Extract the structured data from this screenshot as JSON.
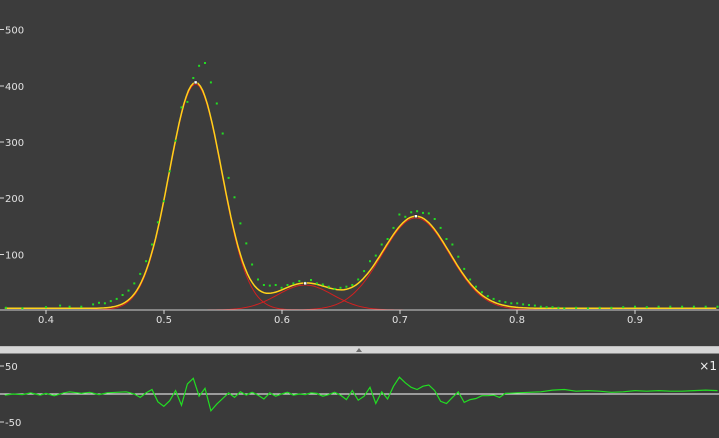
{
  "colors": {
    "background": "#3c3c3c",
    "data_points": "#22dd22",
    "sum_curve": "#ffd21a",
    "component_curves": "#d22020",
    "residual_line": "#22dd22",
    "zero_line": "#ffffff",
    "splitter": "#d6d6d6"
  },
  "main_plot": {
    "y_tick_labels": [
      "500",
      "400",
      "300",
      "200",
      "100"
    ],
    "x_tick_labels": [
      "0.4",
      "0.5",
      "0.6",
      "0.7",
      "0.8",
      "0.9"
    ]
  },
  "residual_plot": {
    "y_tick_labels": [
      "50",
      "-50"
    ],
    "scale_label": "×1"
  },
  "chart_data": [
    {
      "type": "scatter",
      "title": "",
      "xlabel": "",
      "ylabel": "",
      "xlim": [
        0.365,
        0.97
      ],
      "ylim": [
        -5,
        555
      ],
      "grid": false,
      "series": [
        {
          "kind": "data",
          "color": "#22dd22",
          "x": [
            0.366,
            0.38,
            0.4,
            0.412,
            0.42,
            0.43,
            0.44,
            0.445,
            0.45,
            0.455,
            0.46,
            0.465,
            0.47,
            0.475,
            0.48,
            0.485,
            0.49,
            0.495,
            0.5,
            0.505,
            0.51,
            0.515,
            0.52,
            0.525,
            0.53,
            0.535,
            0.54,
            0.545,
            0.55,
            0.555,
            0.56,
            0.565,
            0.57,
            0.575,
            0.58,
            0.585,
            0.59,
            0.595,
            0.6,
            0.605,
            0.61,
            0.615,
            0.62,
            0.625,
            0.63,
            0.635,
            0.64,
            0.645,
            0.65,
            0.655,
            0.66,
            0.665,
            0.67,
            0.675,
            0.68,
            0.685,
            0.69,
            0.695,
            0.7,
            0.705,
            0.71,
            0.715,
            0.72,
            0.725,
            0.73,
            0.735,
            0.74,
            0.745,
            0.75,
            0.755,
            0.76,
            0.765,
            0.77,
            0.775,
            0.78,
            0.785,
            0.79,
            0.795,
            0.8,
            0.805,
            0.81,
            0.815,
            0.82,
            0.825,
            0.83,
            0.835,
            0.84,
            0.85,
            0.86,
            0.87,
            0.88,
            0.89,
            0.9,
            0.91,
            0.92,
            0.93,
            0.94,
            0.95,
            0.96,
            0.97
          ],
          "y": [
            4,
            3,
            5,
            8,
            6,
            6,
            10,
            13,
            12,
            16,
            20,
            27,
            35,
            48,
            65,
            88,
            118,
            158,
            196,
            250,
            305,
            365,
            375,
            418,
            440,
            445,
            410,
            372,
            318,
            238,
            203,
            156,
            120,
            82,
            55,
            45,
            44,
            45,
            40,
            45,
            48,
            52,
            50,
            54,
            48,
            46,
            42,
            38,
            40,
            42,
            45,
            55,
            70,
            88,
            98,
            118,
            128,
            148,
            172,
            168,
            176,
            178,
            175,
            174,
            164,
            148,
            128,
            118,
            96,
            74,
            55,
            42,
            32,
            25,
            20,
            16,
            14,
            12,
            12,
            10,
            9,
            8,
            6,
            5,
            5,
            4,
            3,
            4,
            3,
            4,
            4,
            5,
            6,
            5,
            6,
            6,
            6,
            6,
            6,
            6
          ]
        },
        {
          "kind": "sum",
          "color": "#ffd21a"
        },
        {
          "kind": "component",
          "color": "#d22020",
          "center": 0.527,
          "height": 407,
          "sigma": 0.0222
        },
        {
          "kind": "component",
          "color": "#d22020",
          "center": 0.62,
          "height": 45,
          "sigma": 0.0235
        },
        {
          "kind": "component",
          "color": "#d22020",
          "center": 0.714,
          "height": 166,
          "sigma": 0.0285
        }
      ]
    },
    {
      "type": "line",
      "title": "",
      "xlabel": "",
      "ylabel": "",
      "xlim": [
        0.365,
        0.97
      ],
      "ylim": [
        -70,
        70
      ],
      "series": [
        {
          "kind": "residual",
          "color": "#22dd22",
          "x": [
            0.365,
            0.372,
            0.38,
            0.387,
            0.395,
            0.4,
            0.407,
            0.415,
            0.42,
            0.43,
            0.437,
            0.445,
            0.452,
            0.46,
            0.468,
            0.475,
            0.48,
            0.485,
            0.49,
            0.495,
            0.5,
            0.505,
            0.51,
            0.515,
            0.52,
            0.525,
            0.53,
            0.535,
            0.54,
            0.545,
            0.55,
            0.555,
            0.56,
            0.565,
            0.57,
            0.575,
            0.58,
            0.585,
            0.59,
            0.595,
            0.6,
            0.605,
            0.61,
            0.615,
            0.62,
            0.625,
            0.63,
            0.635,
            0.64,
            0.645,
            0.65,
            0.655,
            0.66,
            0.665,
            0.67,
            0.675,
            0.68,
            0.685,
            0.69,
            0.695,
            0.7,
            0.705,
            0.71,
            0.715,
            0.72,
            0.725,
            0.73,
            0.735,
            0.74,
            0.745,
            0.75,
            0.755,
            0.76,
            0.765,
            0.77,
            0.775,
            0.78,
            0.785,
            0.79,
            0.8,
            0.81,
            0.82,
            0.83,
            0.84,
            0.85,
            0.86,
            0.87,
            0.88,
            0.89,
            0.9,
            0.91,
            0.92,
            0.93,
            0.94,
            0.95,
            0.96,
            0.97
          ],
          "y": [
            -2,
            0,
            -1,
            2,
            -2,
            1,
            -3,
            2,
            4,
            1,
            3,
            -1,
            2,
            3,
            4,
            0,
            -6,
            2,
            8,
            -14,
            -22,
            -12,
            6,
            -20,
            18,
            28,
            -4,
            10,
            -30,
            -18,
            -8,
            2,
            -6,
            4,
            -2,
            3,
            -2,
            -9,
            2,
            -4,
            0,
            3,
            -2,
            0,
            -1,
            2,
            1,
            -4,
            -1,
            3,
            -2,
            -10,
            6,
            -11,
            -4,
            12,
            -17,
            4,
            -9,
            14,
            30,
            20,
            12,
            8,
            14,
            16,
            6,
            -13,
            -17,
            -6,
            4,
            -15,
            -10,
            -8,
            -3,
            -3,
            -2,
            -6,
            1,
            2,
            3,
            4,
            7,
            8,
            5,
            6,
            5,
            3,
            4,
            6,
            5,
            6,
            5,
            5,
            6,
            7,
            6
          ]
        }
      ]
    }
  ]
}
